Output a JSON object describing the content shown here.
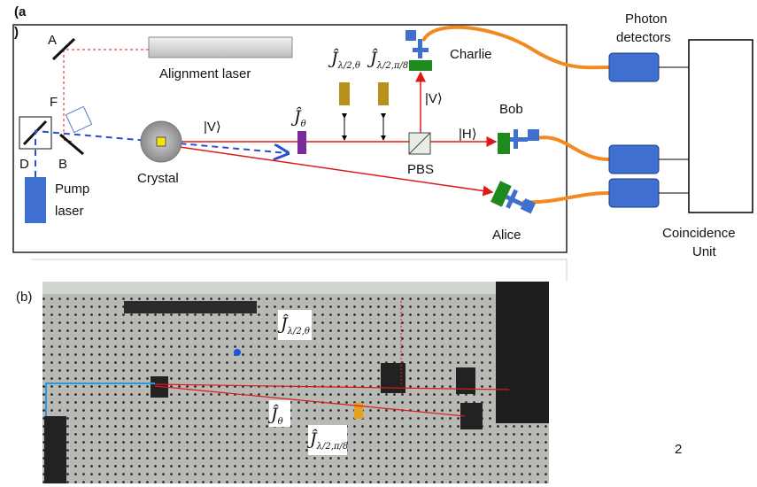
{
  "panel_a": {
    "label_open": "(a",
    "label_close": ")",
    "mirror_a": "A",
    "mirror_f": "F",
    "mirror_b": "B",
    "mirror_d": "D",
    "alignment_laser": "Alignment laser",
    "pump_laser": [
      "Pump",
      "laser"
    ],
    "crystal": "Crystal",
    "state_v1": "|V⟩",
    "state_v2": "|V⟩",
    "state_h": "|H⟩",
    "pbs": "PBS",
    "op_theta": {
      "symbol": "Ĵ",
      "subscript": "θ"
    },
    "op_half_theta": {
      "symbol": "Ĵ",
      "subscript": "λ/2,θ"
    },
    "op_half_pi8": {
      "symbol": "Ĵ",
      "subscript": "λ/2,π/8"
    },
    "charlie": "Charlie",
    "bob": "Bob",
    "alice": "Alice",
    "photon_detectors": [
      "Photon",
      "detectors"
    ],
    "coincidence_unit": [
      "Coincidence",
      "Unit"
    ]
  },
  "panel_b": {
    "label": "(b)",
    "op_half_theta": {
      "symbol": "Ĵ",
      "subscript": "λ/2,θ"
    },
    "op_theta": {
      "symbol": "Ĵ",
      "subscript": "θ"
    },
    "op_half_pi8": {
      "symbol": "Ĵ",
      "subscript": "λ/2,π/8"
    }
  },
  "page_number": "2"
}
